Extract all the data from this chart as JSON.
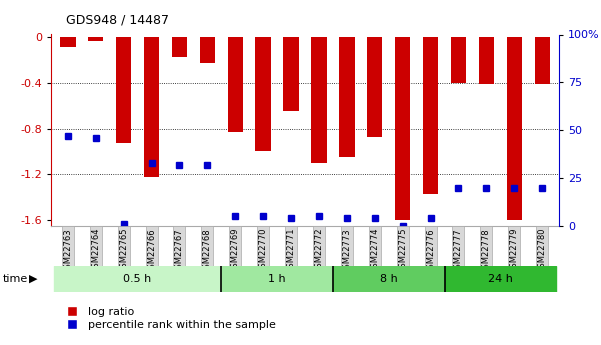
{
  "title": "GDS948 / 14487",
  "samples": [
    "GSM22763",
    "GSM22764",
    "GSM22765",
    "GSM22766",
    "GSM22767",
    "GSM22768",
    "GSM22769",
    "GSM22770",
    "GSM22771",
    "GSM22772",
    "GSM22773",
    "GSM22774",
    "GSM22775",
    "GSM22776",
    "GSM22777",
    "GSM22778",
    "GSM22779",
    "GSM22780"
  ],
  "log_ratio": [
    -0.09,
    -0.04,
    -0.93,
    -1.22,
    -0.18,
    -0.23,
    -0.83,
    -1.0,
    -0.65,
    -1.1,
    -1.05,
    -0.87,
    -1.6,
    -1.37,
    -0.4,
    -0.41,
    -1.6,
    -0.41
  ],
  "percentile_rank": [
    47,
    46,
    1,
    33,
    32,
    32,
    5,
    5,
    4,
    5,
    4,
    4,
    0,
    4,
    20,
    20,
    20,
    20
  ],
  "groups": [
    {
      "label": "0.5 h",
      "start": 0,
      "end": 6,
      "color": "#c8f5c8"
    },
    {
      "label": "1 h",
      "start": 6,
      "end": 10,
      "color": "#a0e8a0"
    },
    {
      "label": "8 h",
      "start": 10,
      "end": 14,
      "color": "#60cc60"
    },
    {
      "label": "24 h",
      "start": 14,
      "end": 18,
      "color": "#30b830"
    }
  ],
  "ylim_left": [
    -1.65,
    0.02
  ],
  "ylim_right": [
    0,
    100
  ],
  "bar_color": "#cc0000",
  "dot_color": "#0000cc",
  "bar_width": 0.55,
  "background_color": "#ffffff",
  "axis_color_left": "#cc0000",
  "axis_color_right": "#0000cc",
  "left_yticks": [
    0,
    -0.4,
    -0.8,
    -1.2,
    -1.6
  ],
  "right_yticks": [
    0,
    25,
    50,
    75,
    100
  ],
  "right_yticklabels": [
    "0",
    "25",
    "50",
    "75",
    "100%"
  ]
}
